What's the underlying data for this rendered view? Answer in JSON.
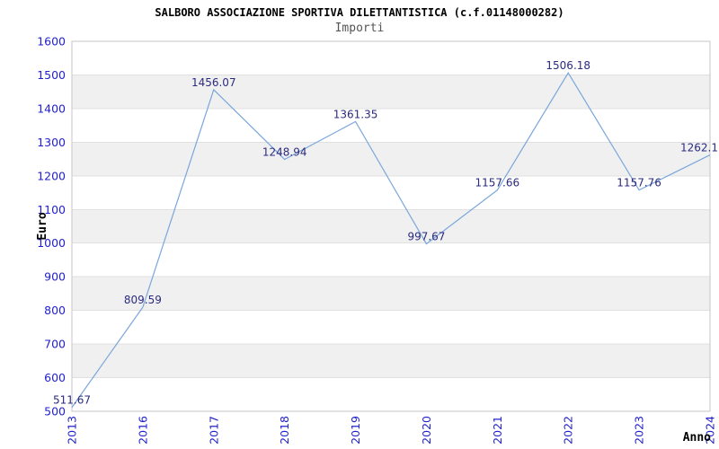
{
  "title": "SALBORO ASSOCIAZIONE SPORTIVA DILETTANTISTICA (c.f.01148000282)",
  "subtitle": "Importi",
  "chart_data": {
    "type": "line",
    "title": "SALBORO ASSOCIAZIONE SPORTIVA DILETTANTISTICA (c.f.01148000282)",
    "subtitle": "Importi",
    "categories": [
      "2013",
      "2016",
      "2017",
      "2018",
      "2019",
      "2020",
      "2021",
      "2022",
      "2023",
      "2024"
    ],
    "series": [
      {
        "name": "Importi",
        "values": [
          511.67,
          809.59,
          1456.07,
          1248.94,
          1361.35,
          997.67,
          1157.66,
          1506.18,
          1157.76,
          1262.1
        ]
      }
    ],
    "point_labels": [
      "511.67",
      "809.59",
      "1456.07",
      "1248.94",
      "1361.35",
      "997.67",
      "1157.66",
      "1506.18",
      "1157.76",
      "1262.1"
    ],
    "xlabel": "Anno",
    "ylabel": "Euro",
    "ylim": [
      500,
      1600
    ],
    "ytick_step": 100,
    "yticks": [
      500,
      600,
      700,
      800,
      900,
      1000,
      1100,
      1200,
      1300,
      1400,
      1500,
      1600
    ],
    "grid": "alternating horizontal bands every 100, light gray separator lines",
    "legend_position": "none",
    "x_tick_rotation": -90,
    "colors": {
      "line": "#79a6db",
      "tick_label": "#2222cc",
      "point_label": "#2b2b7f",
      "band": "#f0f0f0",
      "grid_line": "#e0e0e0",
      "border": "#c6c6c6",
      "title": "#000000",
      "subtitle": "#555555",
      "background": "#ffffff"
    }
  }
}
